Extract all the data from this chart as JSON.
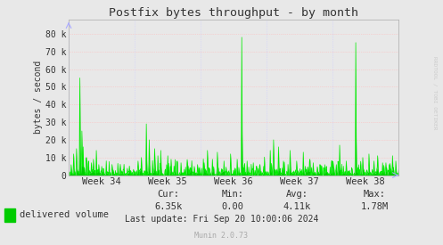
{
  "title": "Postfix bytes throughput - by month",
  "ylabel": "bytes / second",
  "yticks": [
    0,
    10000,
    20000,
    30000,
    40000,
    50000,
    60000,
    70000,
    80000
  ],
  "ytick_labels": [
    "0",
    "10 k",
    "20 k",
    "30 k",
    "40 k",
    "50 k",
    "60 k",
    "70 k",
    "80 k"
  ],
  "ylim": [
    0,
    88000
  ],
  "xtick_labels": [
    "Week 34",
    "Week 35",
    "Week 36",
    "Week 37",
    "Week 38"
  ],
  "legend_label": "delivered volume",
  "legend_color": "#00cc00",
  "cur_label": "Cur:",
  "cur": "6.35k",
  "min_label": "Min:",
  "min": "0.00",
  "avg_label": "Avg:",
  "avg": "4.11k",
  "max_label": "Max:",
  "max": "1.78M",
  "last_update": "Last update: Fri Sep 20 10:00:06 2024",
  "munin_version": "Munin 2.0.73",
  "rrdtool_label": "RRDTOOL / TOBI OETIKER",
  "bg_color": "#e8e8e8",
  "plot_bg_color": "#e8e8e8",
  "grid_color_major_h": "#ffffff",
  "grid_color_minor_h": "#ffbbbb",
  "grid_color_v": "#ccccff",
  "line_color": "#00ee00",
  "fill_color": "#00cc00",
  "n_points": 800
}
